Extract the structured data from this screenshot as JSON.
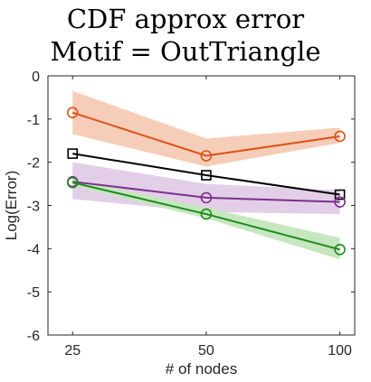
{
  "chart_data": {
    "type": "line",
    "title": [
      "CDF approx error",
      "Motif = OutTriangle"
    ],
    "xlabel": "# of nodes",
    "ylabel": "Log(Error)",
    "x": [
      25,
      50,
      100
    ],
    "x_scale": "log",
    "xlim": [
      22,
      108
    ],
    "ylim": [
      -6,
      0
    ],
    "yticks": [
      0,
      -1,
      -2,
      -3,
      -4,
      -5,
      -6
    ],
    "yticklabels": [
      "0",
      "-1",
      "-2",
      "-3",
      "-4",
      "-5",
      "-6"
    ],
    "xticks": [
      25,
      50,
      100
    ],
    "xticklabels": [
      "25",
      "50",
      "100"
    ],
    "grid": false,
    "legend": "none",
    "series": [
      {
        "color": "#d95319",
        "band_color": "#f6cdb8",
        "marker": "circle",
        "values": [
          -0.85,
          -1.85,
          -1.4
        ],
        "band_low": [
          -1.35,
          -2.1,
          -1.55
        ],
        "band_high": [
          -0.35,
          -1.45,
          -1.2
        ]
      },
      {
        "color": "#000000",
        "marker": "square",
        "values": [
          -1.8,
          -2.3,
          -2.75
        ]
      },
      {
        "color": "#7e2f8e",
        "band_color": "#e2cfe7",
        "marker": "circle",
        "values": [
          -2.45,
          -2.82,
          -2.92
        ],
        "band_low": [
          -2.85,
          -3.15,
          -3.2
        ],
        "band_high": [
          -2.0,
          -2.5,
          -2.65
        ]
      },
      {
        "color": "#1e8c1e",
        "band_color": "#c6e6c0",
        "marker": "circle",
        "values": [
          -2.47,
          -3.2,
          -4.02
        ],
        "band_low": [
          -2.55,
          -3.3,
          -4.25
        ],
        "band_high": [
          -2.4,
          -3.05,
          -3.75
        ]
      }
    ]
  }
}
